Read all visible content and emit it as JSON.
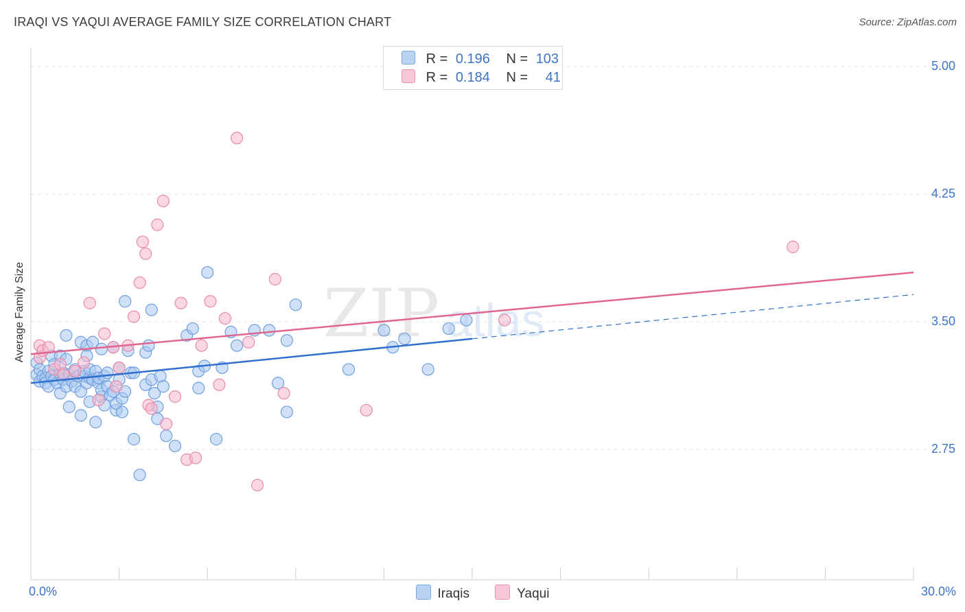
{
  "title": "IRAQI VS YAQUI AVERAGE FAMILY SIZE CORRELATION CHART",
  "source": "Source: ZipAtlas.com",
  "watermark": {
    "zip": "ZIP",
    "atlas": "atlas"
  },
  "colors": {
    "iraqis_fill": "#a9c8f0",
    "iraqis_stroke": "#6f9fe0",
    "iraqis_line": "#2f6fcf",
    "yaqui_fill": "#f6b8cc",
    "yaqui_stroke": "#e88aa8",
    "yaqui_line": "#e0668f",
    "tick_text": "#3b74c9",
    "grid": "#e3e3e3"
  },
  "stats": [
    {
      "r_label": "R =",
      "r_value": "0.196",
      "n_label": "N =",
      "n_value": "103"
    },
    {
      "r_label": "R =",
      "r_value": "0.184",
      "n_label": "N =",
      "n_value": "41"
    }
  ],
  "chart_data": {
    "type": "scatter",
    "title": "IRAQI VS YAQUI AVERAGE FAMILY SIZE CORRELATION CHART",
    "xlabel": "",
    "ylabel": "Average Family Size",
    "xlim": [
      0,
      30
    ],
    "ylim": [
      2.0,
      5.2
    ],
    "x_tick_labels": [
      "0.0%",
      "30.0%"
    ],
    "y_ticks": [
      2.75,
      3.5,
      4.25,
      5.0
    ],
    "y_tick_labels": [
      "2.75",
      "3.50",
      "4.25",
      "5.00"
    ],
    "grid": true,
    "legend_position": "bottom-center",
    "series": [
      {
        "name": "Iraqis",
        "trend": {
          "x": [
            0,
            15
          ],
          "y": [
            3.14,
            3.4
          ],
          "dashed_to": {
            "x": 30,
            "y": 3.66
          }
        },
        "points": [
          [
            0.2,
            3.26
          ],
          [
            0.2,
            3.19
          ],
          [
            0.3,
            3.22
          ],
          [
            0.3,
            3.15
          ],
          [
            0.4,
            3.18
          ],
          [
            0.5,
            3.17
          ],
          [
            0.5,
            3.14
          ],
          [
            0.6,
            3.21
          ],
          [
            0.6,
            3.12
          ],
          [
            0.7,
            3.3
          ],
          [
            0.7,
            3.18
          ],
          [
            0.8,
            3.16
          ],
          [
            0.8,
            3.25
          ],
          [
            0.9,
            3.14
          ],
          [
            1.0,
            3.19
          ],
          [
            1.0,
            3.08
          ],
          [
            1.0,
            3.3
          ],
          [
            1.1,
            3.16
          ],
          [
            1.1,
            3.2
          ],
          [
            1.2,
            3.28
          ],
          [
            1.2,
            3.12
          ],
          [
            1.2,
            3.42
          ],
          [
            1.3,
            3.0
          ],
          [
            1.3,
            3.19
          ],
          [
            1.4,
            3.15
          ],
          [
            1.5,
            3.12
          ],
          [
            1.5,
            3.22
          ],
          [
            1.6,
            3.18
          ],
          [
            1.7,
            2.95
          ],
          [
            1.7,
            3.09
          ],
          [
            1.7,
            3.38
          ],
          [
            1.8,
            3.18
          ],
          [
            1.8,
            3.21
          ],
          [
            1.9,
            3.36
          ],
          [
            1.9,
            3.14
          ],
          [
            1.9,
            3.3
          ],
          [
            2.0,
            3.17
          ],
          [
            2.0,
            3.22
          ],
          [
            2.0,
            3.03
          ],
          [
            2.1,
            3.16
          ],
          [
            2.1,
            3.38
          ],
          [
            2.2,
            2.91
          ],
          [
            2.2,
            3.21
          ],
          [
            2.3,
            3.14
          ],
          [
            2.3,
            3.17
          ],
          [
            2.4,
            3.34
          ],
          [
            2.4,
            3.06
          ],
          [
            2.4,
            3.1
          ],
          [
            2.5,
            3.01
          ],
          [
            2.5,
            3.18
          ],
          [
            2.6,
            3.12
          ],
          [
            2.6,
            3.2
          ],
          [
            2.7,
            3.07
          ],
          [
            2.8,
            3.09
          ],
          [
            2.8,
            3.35
          ],
          [
            2.9,
            2.98
          ],
          [
            2.9,
            3.02
          ],
          [
            3.0,
            3.16
          ],
          [
            3.0,
            3.23
          ],
          [
            3.1,
            3.05
          ],
          [
            3.1,
            2.97
          ],
          [
            3.2,
            3.09
          ],
          [
            3.2,
            3.62
          ],
          [
            3.3,
            3.33
          ],
          [
            3.4,
            3.2
          ],
          [
            3.5,
            3.2
          ],
          [
            3.5,
            2.81
          ],
          [
            3.7,
            2.6
          ],
          [
            3.9,
            3.32
          ],
          [
            3.9,
            3.13
          ],
          [
            4.0,
            3.36
          ],
          [
            4.1,
            3.16
          ],
          [
            4.1,
            3.57
          ],
          [
            4.2,
            3.08
          ],
          [
            4.3,
            2.93
          ],
          [
            4.3,
            3.0
          ],
          [
            4.4,
            3.18
          ],
          [
            4.5,
            3.12
          ],
          [
            4.6,
            2.83
          ],
          [
            4.9,
            2.77
          ],
          [
            5.3,
            3.42
          ],
          [
            5.5,
            3.46
          ],
          [
            5.7,
            3.21
          ],
          [
            5.7,
            3.11
          ],
          [
            5.9,
            3.24
          ],
          [
            6.0,
            3.79
          ],
          [
            6.3,
            2.81
          ],
          [
            6.5,
            3.23
          ],
          [
            6.8,
            3.44
          ],
          [
            7.0,
            3.36
          ],
          [
            7.6,
            3.45
          ],
          [
            8.1,
            3.45
          ],
          [
            8.4,
            3.14
          ],
          [
            8.7,
            2.97
          ],
          [
            8.7,
            3.39
          ],
          [
            9.0,
            3.6
          ],
          [
            10.8,
            3.22
          ],
          [
            12.0,
            3.45
          ],
          [
            12.3,
            3.35
          ],
          [
            12.7,
            3.4
          ],
          [
            13.5,
            3.22
          ],
          [
            14.2,
            3.46
          ],
          [
            14.8,
            3.51
          ]
        ]
      },
      {
        "name": "Yaqui",
        "trend": {
          "x": [
            0,
            30
          ],
          "y": [
            3.31,
            3.79
          ]
        },
        "points": [
          [
            0.3,
            3.36
          ],
          [
            0.3,
            3.29
          ],
          [
            0.4,
            3.33
          ],
          [
            0.6,
            3.35
          ],
          [
            0.8,
            3.22
          ],
          [
            1.0,
            3.25
          ],
          [
            1.1,
            3.19
          ],
          [
            1.5,
            3.21
          ],
          [
            1.8,
            3.26
          ],
          [
            2.0,
            3.61
          ],
          [
            2.3,
            3.04
          ],
          [
            2.5,
            3.43
          ],
          [
            2.8,
            3.35
          ],
          [
            2.9,
            3.12
          ],
          [
            3.0,
            3.23
          ],
          [
            3.3,
            3.36
          ],
          [
            3.5,
            3.53
          ],
          [
            3.7,
            3.73
          ],
          [
            3.8,
            3.97
          ],
          [
            3.9,
            3.9
          ],
          [
            4.0,
            3.01
          ],
          [
            4.1,
            2.99
          ],
          [
            4.3,
            4.07
          ],
          [
            4.5,
            4.21
          ],
          [
            4.6,
            2.9
          ],
          [
            4.9,
            3.06
          ],
          [
            5.1,
            3.61
          ],
          [
            5.3,
            2.69
          ],
          [
            5.6,
            2.7
          ],
          [
            5.8,
            3.36
          ],
          [
            6.1,
            3.62
          ],
          [
            6.4,
            3.13
          ],
          [
            6.6,
            3.52
          ],
          [
            7.0,
            4.58
          ],
          [
            7.4,
            3.38
          ],
          [
            7.7,
            2.54
          ],
          [
            8.3,
            3.75
          ],
          [
            8.6,
            3.08
          ],
          [
            11.4,
            2.98
          ],
          [
            16.1,
            3.51
          ],
          [
            25.9,
            3.94
          ]
        ]
      }
    ]
  },
  "legend": [
    {
      "label": "Iraqis"
    },
    {
      "label": "Yaqui"
    }
  ]
}
